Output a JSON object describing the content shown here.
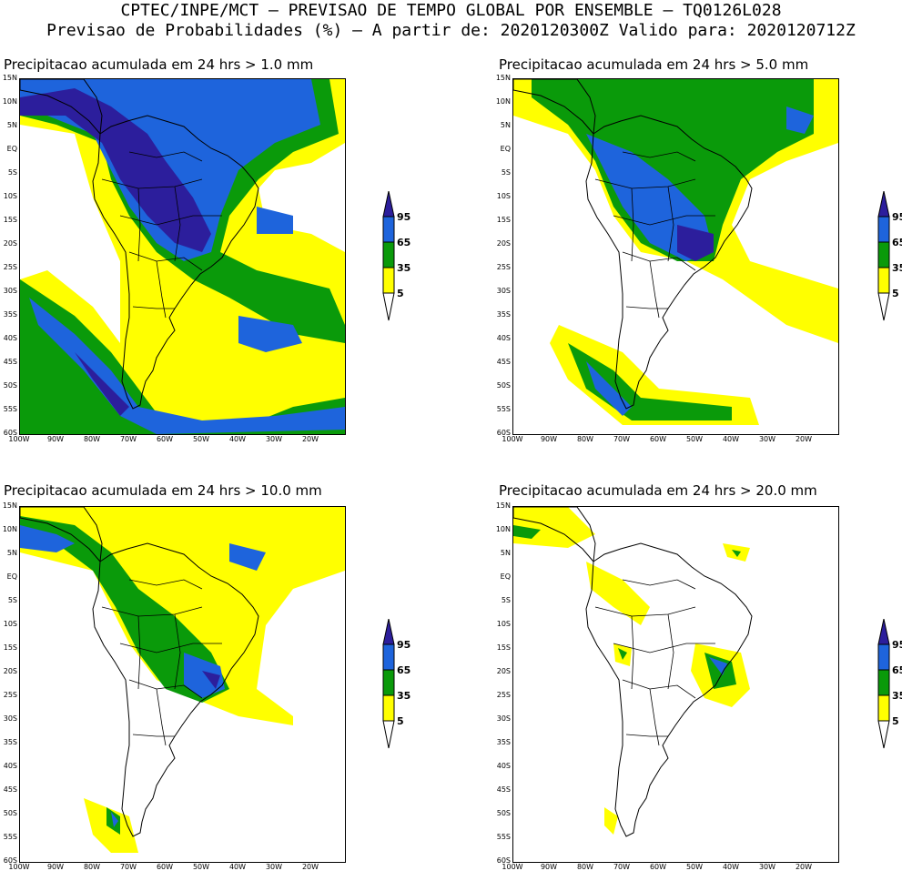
{
  "header": {
    "line1": "CPTEC/INPE/MCT — PREVISAO DE TEMPO GLOBAL POR ENSEMBLE — TQ0126L028",
    "line2": "Previsao de Probabilidades (%) —  A partir de: 2020120300Z  Valido para: 2020120712Z"
  },
  "panels": [
    {
      "title": "Precipitacao acumulada em 24 hrs > 1.0 mm"
    },
    {
      "title": "Precipitacao acumulada em 24 hrs > 5.0 mm"
    },
    {
      "title": "Precipitacao acumulada em 24 hrs > 10.0 mm"
    },
    {
      "title": "Precipitacao acumulada em 24 hrs > 20.0 mm"
    }
  ],
  "lat_labels": [
    "15N",
    "10N",
    "5N",
    "EQ",
    "5S",
    "10S",
    "15S",
    "20S",
    "25S",
    "30S",
    "35S",
    "40S",
    "45S",
    "50S",
    "55S",
    "60S"
  ],
  "lon_labels": [
    "100W",
    "90W",
    "80W",
    "70W",
    "60W",
    "50W",
    "40W",
    "30W",
    "20W"
  ],
  "legend": {
    "labels": [
      "95",
      "65",
      "35",
      "5"
    ],
    "colors": {
      "p5": "#ffff00",
      "p35": "#0a9a0a",
      "p65": "#1e64dc",
      "p95": "#2c1e9c"
    }
  }
}
